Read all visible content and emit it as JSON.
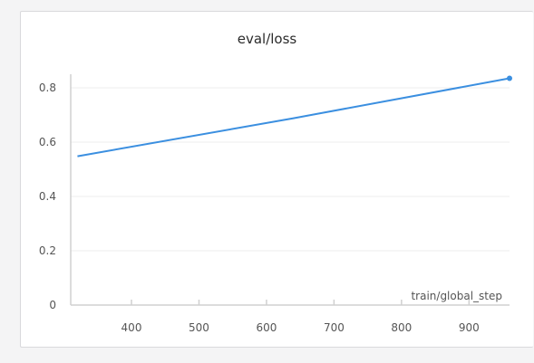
{
  "chart_data": {
    "type": "line",
    "title": "eval/loss",
    "xlabel": "train/global_step",
    "ylabel": "",
    "xlim": [
      310,
      960
    ],
    "ylim": [
      0,
      0.85
    ],
    "x_ticks": [
      400,
      500,
      600,
      700,
      800,
      900
    ],
    "y_ticks": [
      0,
      0.2,
      0.4,
      0.6,
      0.8
    ],
    "x_tick_labels": [
      "400",
      "500",
      "600",
      "700",
      "800",
      "900"
    ],
    "y_tick_labels": [
      "0",
      "0.2",
      "0.4",
      "0.6",
      "0.8"
    ],
    "grid": true,
    "series": [
      {
        "color": "#3b8fe0",
        "x": [
          320,
          640,
          960
        ],
        "y": [
          0.548,
          0.688,
          0.835
        ]
      }
    ]
  }
}
